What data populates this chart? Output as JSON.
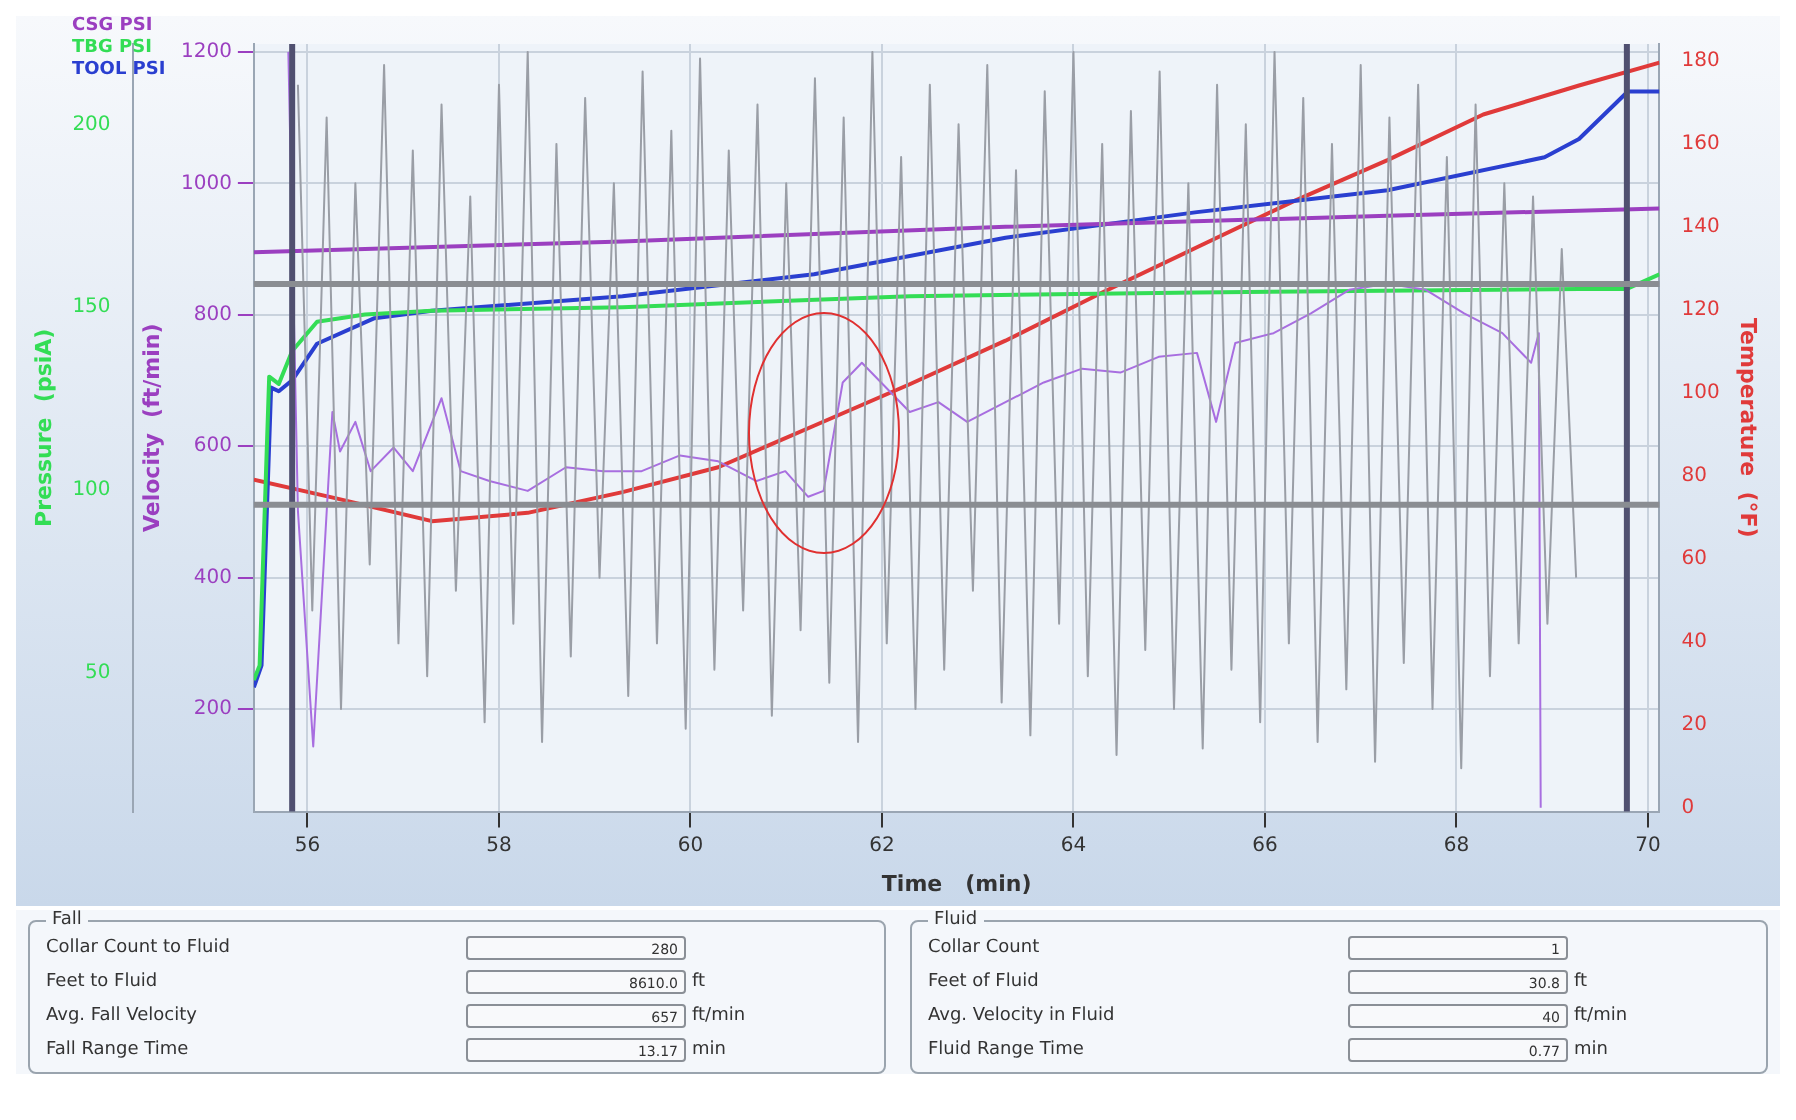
{
  "chart_data": [
    {
      "type": "line",
      "xlabel": "Time   (min)",
      "ylabel": "Velocity  (ft/min)",
      "y2label": "Temperature  (°F)",
      "y3label": "Pressure  (psiA)",
      "xlim": [
        55.44,
        70.12
      ],
      "xticks": [
        56,
        58,
        60,
        62,
        64,
        66,
        68,
        70
      ],
      "ylim": [
        44,
        1212
      ],
      "yticks": [
        200,
        400,
        600,
        800,
        1000,
        1200
      ],
      "y2lim": [
        -1,
        184
      ],
      "y2ticks": [
        0,
        20,
        40,
        60,
        80,
        100,
        120,
        140,
        160,
        180
      ],
      "y3lim": [
        12,
        222
      ],
      "y3ticks": [
        50,
        100,
        150,
        200
      ],
      "grid": true,
      "legend": "top left",
      "marker": "none",
      "line_style": "solid",
      "ref_lines": [
        {
          "axis": "x",
          "value": 55.84,
          "color": "#505070"
        },
        {
          "axis": "x",
          "value": 69.78,
          "color": "#505070"
        },
        {
          "axis": "y",
          "value": 847,
          "color": "#8a8d92"
        },
        {
          "axis": "y",
          "value": 511,
          "color": "#8a8d92"
        }
      ],
      "series": [
        {
          "color": "#9a9ea6",
          "axis": "y",
          "x": [
            55.9,
            56.05,
            56.2,
            56.35,
            56.5,
            56.65,
            56.8,
            56.95,
            57.1,
            57.25,
            57.4,
            57.55,
            57.7,
            57.85,
            58,
            58.15,
            58.3,
            58.45,
            58.6,
            58.75,
            58.9,
            59.05,
            59.2,
            59.35,
            59.5,
            59.65,
            59.8,
            59.95,
            60.1,
            60.25,
            60.4,
            60.55,
            60.7,
            60.85,
            61,
            61.15,
            61.3,
            61.45,
            61.6,
            61.75,
            61.9,
            62.05,
            62.2,
            62.35,
            62.5,
            62.65,
            62.8,
            62.95,
            63.1,
            63.25,
            63.4,
            63.55,
            63.7,
            63.85,
            64,
            64.15,
            64.3,
            64.45,
            64.6,
            64.75,
            64.9,
            65.05,
            65.2,
            65.35,
            65.5,
            65.65,
            65.8,
            65.95,
            66.1,
            66.25,
            66.4,
            66.55,
            66.7,
            66.85,
            67,
            67.15,
            67.3,
            67.45,
            67.6,
            67.75,
            67.9,
            68.05,
            68.2,
            68.35,
            68.5,
            68.65,
            68.8,
            68.95,
            69.1,
            69.25
          ],
          "values": [
            1150,
            350,
            1100,
            200,
            1000,
            420,
            1180,
            300,
            1050,
            250,
            1120,
            380,
            980,
            180,
            1150,
            330,
            1200,
            150,
            1060,
            280,
            1130,
            400,
            1000,
            220,
            1170,
            300,
            1080,
            170,
            1190,
            260,
            1050,
            350,
            1120,
            190,
            1000,
            320,
            1160,
            240,
            1100,
            150,
            1200,
            300,
            1040,
            200,
            1150,
            260,
            1090,
            380,
            1180,
            210,
            1020,
            160,
            1140,
            330,
            1200,
            250,
            1060,
            130,
            1110,
            290,
            1170,
            200,
            1000,
            140,
            1150,
            260,
            1090,
            180,
            1200,
            300,
            1130,
            150,
            1060,
            230,
            1180,
            120,
            1100,
            270,
            1150,
            200,
            1040,
            110,
            1120,
            250,
            1000,
            300,
            980,
            330,
            900,
            400
          ]
        },
        {
          "color": "#a86ee0",
          "axis": "y",
          "x": [
            55.8,
            55.9,
            56.06,
            56.26,
            56.34,
            56.5,
            56.66,
            56.9,
            57.1,
            57.4,
            57.6,
            57.9,
            58.3,
            58.7,
            59.09,
            59.49,
            59.89,
            60.29,
            60.69,
            60.99,
            61.23,
            61.39,
            61.59,
            61.79,
            62.09,
            62.29,
            62.59,
            62.89,
            63.29,
            63.69,
            64.09,
            64.49,
            64.89,
            65.29,
            65.49,
            65.69,
            66.09,
            66.48,
            66.88,
            67.28,
            67.68,
            68.08,
            68.48,
            68.78,
            68.86,
            68.88
          ],
          "values": [
            1200,
            502,
            143,
            652,
            592,
            637,
            562,
            598,
            562,
            673,
            562,
            547,
            532,
            568,
            562,
            562,
            586,
            577,
            547,
            562,
            523,
            532,
            697,
            727,
            682,
            652,
            667,
            637,
            667,
            697,
            718,
            712,
            736,
            742,
            637,
            757,
            772,
            802,
            838,
            847,
            838,
            802,
            772,
            727,
            772,
            50
          ]
        },
        {
          "name": "CSG PSI",
          "color": "#9b3fc0",
          "axis": "y3",
          "x": [
            55.44,
            59.29,
            63.29,
            67.28,
            70.12
          ],
          "values": [
            165,
            168,
            172,
            175,
            177
          ]
        },
        {
          "name": "TBG PSI",
          "color": "#33dd55",
          "axis": "y3",
          "x": [
            55.44,
            55.5,
            55.6,
            55.7,
            55.84,
            56.1,
            56.6,
            57.3,
            59.29,
            62.29,
            65.29,
            69.28,
            69.78,
            70.12
          ],
          "values": [
            48,
            52,
            131,
            129,
            138,
            146,
            148,
            149,
            150,
            153,
            154,
            155,
            155,
            159
          ]
        },
        {
          "name": "TOOL PSI",
          "color": "#2a3fd0",
          "axis": "y3",
          "x": [
            55.44,
            55.52,
            55.62,
            55.7,
            55.84,
            56.1,
            56.7,
            57.3,
            59.29,
            61.29,
            63.29,
            65.29,
            67.28,
            68.92,
            69.28,
            69.79,
            70.12
          ],
          "values": [
            46,
            52,
            128,
            127,
            130,
            140,
            147,
            149,
            153,
            159,
            169,
            176,
            182,
            191,
            196,
            209,
            209
          ]
        },
        {
          "color": "#e03a3a",
          "axis": "y2",
          "x": [
            55.44,
            56.3,
            57.3,
            58.3,
            59.29,
            60.29,
            61.29,
            62.29,
            63.29,
            64.29,
            65.29,
            66.29,
            67.28,
            68.28,
            69.28,
            70.12
          ],
          "values": [
            79,
            74.5,
            69,
            71,
            76,
            82,
            92,
            102,
            112.5,
            124,
            135,
            146,
            156,
            167,
            174,
            179.5
          ]
        }
      ]
    },
    {
      "type": "other",
      "title": "Fall",
      "categories": [
        "Collar Count to Fluid",
        "Feet to Fluid",
        "Avg. Fall Velocity",
        "Fall Range Time"
      ],
      "value_labels": [
        "280",
        "8610.0",
        "657",
        "13.17"
      ],
      "annotations": [
        "ft",
        "ft/min",
        "min"
      ]
    },
    {
      "type": "other",
      "title": "Fluid",
      "categories": [
        "Collar Count",
        "Feet of Fluid",
        "Avg. Velocity in Fluid",
        "Fluid Range Time"
      ],
      "value_labels": [
        "1",
        "30.8",
        "40",
        "0.77"
      ],
      "annotations": [
        "ft",
        "ft/min",
        "min"
      ]
    }
  ]
}
